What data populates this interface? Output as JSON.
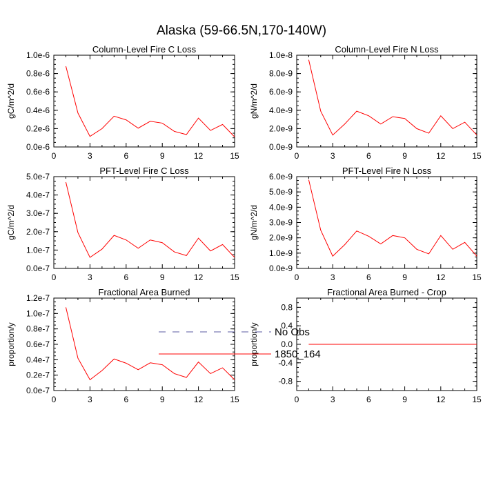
{
  "figure": {
    "title": "Alaska (59-66.5N,170-140W)"
  },
  "legend": [
    {
      "label": "No Obs",
      "color": "#5a5aa0",
      "dash": true
    },
    {
      "label": "1850_164",
      "color": "#ff0000",
      "dash": false
    }
  ],
  "chart_data": [
    {
      "type": "line",
      "title": "Column-Level Fire C Loss",
      "ylabel": "gC/m^2/d",
      "xlim": [
        0,
        15
      ],
      "xticks": [
        "0",
        "3",
        "6",
        "9",
        "12",
        "15"
      ],
      "ylim": [
        0,
        1e-06
      ],
      "yticks": [
        "0.0e-6",
        "0.2e-6",
        "0.4e-6",
        "0.6e-6",
        "0.8e-6",
        "1.0e-6"
      ],
      "series": [
        {
          "name": "1850_164",
          "x": [
            1,
            2,
            3,
            4,
            5,
            6,
            7,
            8,
            9,
            10,
            11,
            12,
            13,
            14,
            15
          ],
          "values": [
            8.8e-07,
            3.7e-07,
            1.15e-07,
            2e-07,
            3.35e-07,
            2.95e-07,
            2.05e-07,
            2.8e-07,
            2.6e-07,
            1.7e-07,
            1.35e-07,
            3.15e-07,
            1.8e-07,
            2.45e-07,
            1.1e-07
          ]
        }
      ]
    },
    {
      "type": "line",
      "title": "Column-Level Fire N Loss",
      "ylabel": "gN/m^2/d",
      "xlim": [
        0,
        15
      ],
      "xticks": [
        "0",
        "3",
        "6",
        "9",
        "12",
        "15"
      ],
      "ylim": [
        0,
        1e-08
      ],
      "yticks": [
        "0.0e-9",
        "2.0e-9",
        "4.0e-9",
        "6.0e-9",
        "8.0e-9",
        "1.0e-8"
      ],
      "series": [
        {
          "name": "1850_164",
          "x": [
            1,
            2,
            3,
            4,
            5,
            6,
            7,
            8,
            9,
            10,
            11,
            12,
            13,
            14,
            15
          ],
          "values": [
            9.5e-09,
            3.9e-09,
            1.3e-09,
            2.5e-09,
            3.9e-09,
            3.4e-09,
            2.5e-09,
            3.3e-09,
            3.1e-09,
            2e-09,
            1.5e-09,
            3.4e-09,
            2e-09,
            2.7e-09,
            1.3e-09
          ]
        }
      ]
    },
    {
      "type": "line",
      "title": "PFT-Level Fire C Loss",
      "ylabel": "gC/m^2/d",
      "xlim": [
        0,
        15
      ],
      "xticks": [
        "0",
        "3",
        "6",
        "9",
        "12",
        "15"
      ],
      "ylim": [
        0,
        5e-07
      ],
      "yticks": [
        "0.0e-7",
        "1.0e-7",
        "2.0e-7",
        "3.0e-7",
        "4.0e-7",
        "5.0e-7"
      ],
      "series": [
        {
          "name": "1850_164",
          "x": [
            1,
            2,
            3,
            4,
            5,
            6,
            7,
            8,
            9,
            10,
            11,
            12,
            13,
            14,
            15
          ],
          "values": [
            4.7e-07,
            1.95e-07,
            6e-08,
            1.05e-07,
            1.8e-07,
            1.55e-07,
            1.1e-07,
            1.55e-07,
            1.4e-07,
            9e-08,
            7e-08,
            1.65e-07,
            9.5e-08,
            1.3e-07,
            6e-08
          ]
        }
      ]
    },
    {
      "type": "line",
      "title": "PFT-Level Fire N Loss",
      "ylabel": "gN/m^2/d",
      "xlim": [
        0,
        15
      ],
      "xticks": [
        "0",
        "3",
        "6",
        "9",
        "12",
        "15"
      ],
      "ylim": [
        0,
        6e-09
      ],
      "yticks": [
        "0.0e-9",
        "1.0e-9",
        "2.0e-9",
        "3.0e-9",
        "4.0e-9",
        "5.0e-9",
        "6.0e-9"
      ],
      "series": [
        {
          "name": "1850_164",
          "x": [
            1,
            2,
            3,
            4,
            5,
            6,
            7,
            8,
            9,
            10,
            11,
            12,
            13,
            14,
            15
          ],
          "values": [
            5.8e-09,
            2.5e-09,
            8e-10,
            1.55e-09,
            2.45e-09,
            2.1e-09,
            1.6e-09,
            2.15e-09,
            2e-09,
            1.25e-09,
            9.5e-10,
            2.15e-09,
            1.25e-09,
            1.7e-09,
            8e-10
          ]
        }
      ]
    },
    {
      "type": "line",
      "title": "Fractional Area Burned",
      "ylabel": "proportion/y",
      "xlim": [
        0,
        15
      ],
      "xticks": [
        "0",
        "3",
        "6",
        "9",
        "12",
        "15"
      ],
      "ylim": [
        0,
        1.2e-07
      ],
      "yticks": [
        "0.0e-7",
        "0.2e-7",
        "0.4e-7",
        "0.6e-7",
        "0.8e-7",
        "1.0e-7",
        "1.2e-7"
      ],
      "series": [
        {
          "name": "1850_164",
          "x": [
            1,
            2,
            3,
            4,
            5,
            6,
            7,
            8,
            9,
            10,
            11,
            12,
            13,
            14,
            15
          ],
          "values": [
            1.08e-07,
            4.2e-08,
            1.4e-08,
            2.6e-08,
            4.1e-08,
            3.55e-08,
            2.7e-08,
            3.6e-08,
            3.35e-08,
            2.2e-08,
            1.7e-08,
            3.7e-08,
            2.2e-08,
            2.95e-08,
            1.4e-08
          ]
        }
      ]
    },
    {
      "type": "line",
      "title": "Fractional Area Burned - Crop",
      "ylabel": "proportion/y",
      "xlim": [
        0,
        15
      ],
      "xticks": [
        "0",
        "3",
        "6",
        "9",
        "12",
        "15"
      ],
      "ylim": [
        -1.0,
        1.0
      ],
      "yticks": [
        "-0.8",
        "-0.4",
        "0.0",
        "0.4",
        "0.8"
      ],
      "ytick_values": [
        -0.8,
        -0.4,
        0.0,
        0.4,
        0.8
      ],
      "series": [
        {
          "name": "1850_164",
          "x": [
            1,
            2,
            3,
            4,
            5,
            6,
            7,
            8,
            9,
            10,
            11,
            12,
            13,
            14,
            15
          ],
          "values": [
            0,
            0,
            0,
            0,
            0,
            0,
            0,
            0,
            0,
            0,
            0,
            0,
            0,
            0,
            0
          ]
        }
      ]
    }
  ]
}
